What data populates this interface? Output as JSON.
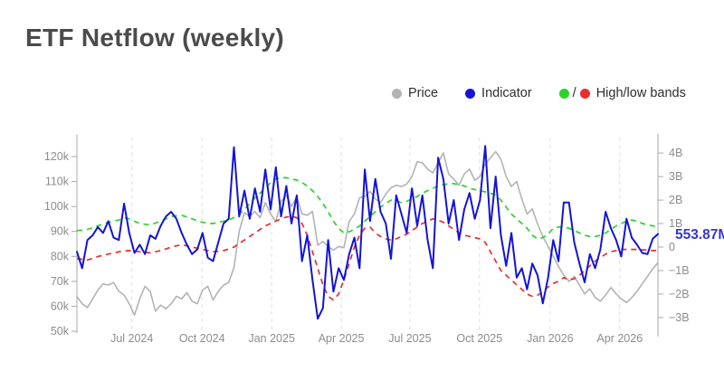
{
  "title": "ETF Netflow (weekly)",
  "legend": {
    "price_label": "Price",
    "price_color": "#b3b3b3",
    "indicator_label": "Indicator",
    "indicator_color": "#1414d6",
    "bands_label": "High/low bands",
    "bands_separator": "/",
    "high_color": "#2bd32b",
    "low_color": "#ea2e2e"
  },
  "annotation": {
    "last_value_label": "553.87M",
    "color": "#3535d8"
  },
  "chart_data": {
    "type": "line",
    "title": "ETF Netflow (weekly)",
    "x_unit": "week",
    "grid": "vertical-dashed",
    "legend_position": "top-right",
    "x_ticks": [
      {
        "label": "Jul 2024",
        "week": 10.5
      },
      {
        "label": "Oct 2024",
        "week": 23.9
      },
      {
        "label": "Jan 2025",
        "week": 37.2
      },
      {
        "label": "Apr 2025",
        "week": 50.5
      },
      {
        "label": "Jul 2025",
        "week": 63.6
      },
      {
        "label": "Oct 2025",
        "week": 76.9
      },
      {
        "label": "Jan 2026",
        "week": 90.4
      },
      {
        "label": "Apr 2026",
        "week": 103.7
      }
    ],
    "left_axis": {
      "name": "Price",
      "unit": "USD thousands",
      "range": [
        50,
        128
      ],
      "ticks": [
        {
          "label": "120k",
          "value": 120
        },
        {
          "label": "110k",
          "value": 110
        },
        {
          "label": "100k",
          "value": 100
        },
        {
          "label": "90k",
          "value": 90
        },
        {
          "label": "80k",
          "value": 80
        },
        {
          "label": "70k",
          "value": 70
        },
        {
          "label": "60k",
          "value": 60
        },
        {
          "label": "50k",
          "value": 50
        }
      ]
    },
    "right_axis": {
      "name": "Netflow",
      "unit": "USD billions",
      "range": [
        -3.7,
        4.7
      ],
      "ticks": [
        {
          "label": "4B",
          "value": 4
        },
        {
          "label": "3B",
          "value": 3
        },
        {
          "label": "2B",
          "value": 2
        },
        {
          "label": "1B",
          "value": 1
        },
        {
          "label": "0",
          "value": 0
        },
        {
          "label": "−1B",
          "value": -1
        },
        {
          "label": "−2B",
          "value": -2
        },
        {
          "label": "−3B",
          "value": -3
        }
      ]
    },
    "last_point": {
      "series": "Indicator",
      "value_label": "553.87M",
      "value_billions": 0.554
    },
    "series": [
      {
        "name": "Price",
        "axis": "price",
        "style": "solid",
        "color": "#b3b3b3",
        "width": 1.6,
        "values": [
          64,
          61,
          59.5,
          63,
          66.5,
          69,
          68.5,
          69.5,
          66,
          64.5,
          61,
          56.5,
          63,
          68,
          66,
          58,
          60.5,
          59,
          61,
          64,
          63,
          65.5,
          62,
          61,
          66.5,
          68,
          62.5,
          66,
          68.5,
          69.5,
          75.5,
          90,
          97.5,
          96,
          98,
          95.5,
          101.5,
          97,
          94,
          102,
          104.5,
          100,
          104,
          97,
          96.5,
          98,
          84.5,
          86,
          84,
          82.5,
          84,
          83.5,
          94,
          97,
          103.5,
          104,
          106,
          103,
          101.5,
          105,
          107.5,
          108.5,
          108,
          109,
          112,
          118,
          117.5,
          115,
          113.5,
          117.5,
          121.5,
          113,
          111,
          108.5,
          113,
          115,
          110.5,
          112,
          117,
          119.5,
          122,
          119,
          112,
          108,
          110,
          103,
          97,
          99,
          93,
          88,
          84,
          80,
          76,
          72.5,
          70,
          72,
          68.5,
          65,
          67,
          63.5,
          62,
          64.5,
          67.5,
          65,
          63,
          61.5,
          63.5,
          66,
          69,
          72,
          75,
          77.5
        ]
      },
      {
        "name": "High band",
        "axis": "flow",
        "style": "dashed",
        "color": "#2bd32b",
        "width": 1.7,
        "values": [
          0.7,
          0.72,
          0.75,
          0.82,
          0.9,
          0.98,
          1.05,
          1.1,
          1.15,
          1.25,
          1.2,
          1.1,
          1.0,
          0.97,
          0.95,
          1.02,
          1.1,
          1.2,
          1.3,
          1.33,
          1.35,
          1.28,
          1.2,
          1.12,
          1.05,
          1.02,
          1.0,
          1.05,
          1.1,
          1.15,
          1.25,
          1.4,
          1.6,
          1.85,
          2.1,
          2.3,
          2.5,
          2.75,
          2.9,
          2.95,
          2.95,
          2.9,
          2.85,
          2.75,
          2.6,
          2.4,
          2.15,
          1.85,
          1.5,
          1.1,
          0.8,
          0.6,
          0.65,
          0.75,
          0.9,
          1.1,
          1.3,
          1.5,
          1.7,
          1.85,
          2.0,
          1.95,
          1.9,
          1.95,
          2.05,
          2.15,
          2.3,
          2.4,
          2.5,
          2.6,
          2.65,
          2.7,
          2.7,
          2.65,
          2.6,
          2.5,
          2.45,
          2.4,
          2.35,
          2.3,
          2.2,
          2.0,
          1.7,
          1.4,
          1.2,
          1.0,
          0.8,
          0.5,
          0.35,
          0.4,
          0.55,
          0.8,
          0.85,
          0.85,
          0.8,
          0.7,
          0.6,
          0.5,
          0.45,
          0.45,
          0.5,
          0.6,
          0.75,
          0.9,
          1.0,
          1.1,
          1.15,
          1.1,
          1.0,
          0.95,
          0.9,
          0.88
        ]
      },
      {
        "name": "Low band",
        "axis": "flow",
        "style": "dashed",
        "color": "#ea2e2e",
        "width": 1.7,
        "values": [
          -0.5,
          -0.52,
          -0.55,
          -0.48,
          -0.4,
          -0.35,
          -0.3,
          -0.25,
          -0.2,
          -0.17,
          -0.15,
          -0.17,
          -0.2,
          -0.22,
          -0.25,
          -0.2,
          -0.15,
          -0.08,
          0.0,
          0.05,
          0.1,
          0.05,
          0.0,
          -0.05,
          -0.1,
          -0.15,
          -0.2,
          -0.18,
          -0.15,
          -0.08,
          0.0,
          0.15,
          0.3,
          0.45,
          0.6,
          0.75,
          0.9,
          1.0,
          1.1,
          1.2,
          1.28,
          1.3,
          1.25,
          1.0,
          0.5,
          -0.2,
          -0.9,
          -1.6,
          -2.1,
          -2.25,
          -2.0,
          -1.4,
          -0.7,
          0.0,
          0.5,
          0.8,
          0.85,
          0.6,
          0.45,
          0.35,
          0.3,
          0.35,
          0.45,
          0.55,
          0.7,
          0.85,
          1.0,
          1.1,
          1.2,
          1.15,
          1.05,
          0.9,
          0.75,
          0.6,
          0.5,
          0.45,
          0.4,
          0.35,
          0.2,
          -0.2,
          -0.6,
          -1.0,
          -1.2,
          -1.4,
          -1.6,
          -1.8,
          -2.0,
          -2.1,
          -2.05,
          -1.9,
          -1.7,
          -1.55,
          -1.45,
          -1.3,
          -1.4,
          -1.35,
          -1.2,
          -1.0,
          -0.8,
          -0.6,
          -0.45,
          -0.3,
          -0.2,
          -0.15,
          -0.1,
          -0.1,
          -0.1,
          -0.1,
          -0.12,
          -0.12,
          -0.15,
          -0.15
        ]
      },
      {
        "name": "Indicator",
        "axis": "flow",
        "style": "solid",
        "color": "#1414d6",
        "width": 2,
        "values": [
          -0.2,
          -0.9,
          0.3,
          0.5,
          0.85,
          0.6,
          1.1,
          0.4,
          0.3,
          1.85,
          0.6,
          -0.25,
          0.1,
          -0.3,
          0.5,
          0.35,
          0.9,
          1.3,
          1.5,
          1.2,
          0.6,
          0.1,
          -0.3,
          -0.1,
          0.6,
          -0.45,
          -0.6,
          0.2,
          1.0,
          1.2,
          4.25,
          1.3,
          2.4,
          1.2,
          2.5,
          1.5,
          3.3,
          1.6,
          3.4,
          1.3,
          2.6,
          1.0,
          2.2,
          -0.6,
          0.5,
          -1.4,
          -3.05,
          -2.6,
          0.3,
          -1.9,
          -0.9,
          -1.4,
          -0.3,
          0.4,
          -0.9,
          3.3,
          1.1,
          2.9,
          1.5,
          1.0,
          -0.5,
          2.2,
          1.4,
          0.6,
          2.5,
          0.9,
          2.2,
          0.3,
          -0.9,
          3.8,
          2.9,
          1.0,
          2.0,
          0.3,
          1.6,
          2.3,
          1.2,
          2.0,
          4.3,
          0.8,
          3.0,
          0.5,
          -0.8,
          0.6,
          -1.3,
          -0.9,
          -1.8,
          -0.7,
          -1.2,
          -2.4,
          -1.3,
          0.3,
          -0.6,
          1.9,
          1.9,
          0.2,
          -0.7,
          -1.5,
          -0.3,
          -0.9,
          -0.1,
          1.5,
          0.8,
          0.3,
          -0.4,
          1.2,
          0.4,
          0.1,
          -0.25,
          -0.3,
          0.35,
          0.554
        ]
      }
    ]
  }
}
